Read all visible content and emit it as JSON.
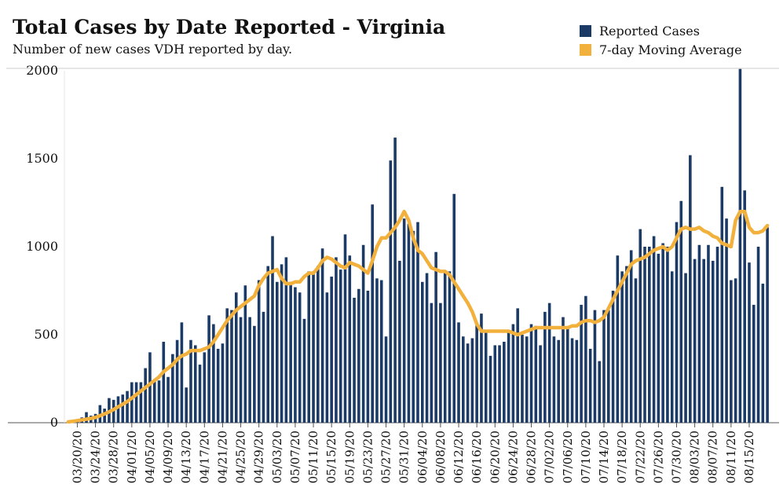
{
  "colors": {
    "bar": "#1b3a66",
    "line": "#f2b13c",
    "axis": "#555555",
    "rule": "#cccccc"
  },
  "chart_data": {
    "type": "bar",
    "title": "Total Cases by Date Reported - Virginia",
    "subtitle": "Number of new cases VDH reported by day.",
    "xlabel": "",
    "ylabel": "",
    "ylim": [
      0,
      2000
    ],
    "yticks": [
      0,
      500,
      1000,
      1500,
      2000
    ],
    "start_date": "03/18/20",
    "xtick_labels": [
      "03/20/20",
      "03/24/20",
      "03/28/20",
      "04/01/20",
      "04/05/20",
      "04/09/20",
      "04/13/20",
      "04/17/20",
      "04/21/20",
      "04/25/20",
      "04/29/20",
      "05/03/20",
      "05/07/20",
      "05/11/20",
      "05/15/20",
      "05/19/20",
      "05/23/20",
      "05/27/20",
      "05/31/20",
      "06/04/20",
      "06/08/20",
      "06/12/20",
      "06/16/20",
      "06/20/20",
      "06/24/20",
      "06/28/20",
      "07/02/20",
      "07/06/20",
      "07/10/20",
      "07/14/20",
      "07/18/20",
      "07/22/20",
      "07/26/20",
      "07/30/20",
      "08/03/20",
      "08/07/20",
      "08/11/20",
      "08/15/20"
    ],
    "grid": false,
    "legend_position": "top-right",
    "series": [
      {
        "name": "Reported Cases",
        "type": "bar",
        "values": [
          10,
          10,
          20,
          30,
          60,
          40,
          50,
          100,
          80,
          140,
          130,
          150,
          160,
          180,
          230,
          230,
          230,
          310,
          400,
          240,
          240,
          460,
          260,
          390,
          470,
          570,
          200,
          470,
          440,
          330,
          400,
          610,
          560,
          420,
          450,
          650,
          640,
          740,
          600,
          780,
          600,
          550,
          810,
          630,
          890,
          1060,
          800,
          900,
          940,
          800,
          770,
          740,
          590,
          860,
          860,
          890,
          990,
          740,
          830,
          940,
          870,
          1070,
          950,
          710,
          760,
          1010,
          750,
          1240,
          820,
          810,
          490,
          1490,
          1620,
          920,
          1160,
          1130,
          1090,
          1140,
          800,
          850,
          680,
          970,
          680,
          850,
          860,
          1300,
          570,
          490,
          450,
          480,
          570,
          620,
          520,
          380,
          440,
          440,
          460,
          520,
          560,
          650,
          500,
          490,
          560,
          550,
          440,
          630,
          680,
          490,
          470,
          600,
          540,
          480,
          470,
          670,
          720,
          420,
          640,
          350,
          640,
          640,
          750,
          950,
          860,
          890,
          980,
          820,
          1100,
          1000,
          1000,
          1060,
          960,
          1020,
          1000,
          860,
          1140,
          1260,
          850,
          1520,
          930,
          1010,
          930,
          1010,
          920,
          1000,
          1340,
          1160,
          810,
          820,
          2010,
          1320,
          910,
          670,
          1000,
          790,
          1110
        ]
      },
      {
        "name": "7-day Moving Average",
        "type": "line",
        "values": [
          5,
          8,
          12,
          16,
          20,
          25,
          30,
          40,
          50,
          62,
          75,
          90,
          105,
          120,
          140,
          160,
          180,
          200,
          220,
          240,
          260,
          290,
          310,
          330,
          360,
          380,
          390,
          410,
          410,
          410,
          420,
          430,
          460,
          500,
          540,
          580,
          610,
          640,
          660,
          680,
          700,
          720,
          780,
          820,
          850,
          860,
          870,
          820,
          790,
          790,
          800,
          800,
          830,
          850,
          850,
          880,
          920,
          940,
          930,
          910,
          890,
          880,
          910,
          900,
          890,
          870,
          850,
          920,
          1000,
          1050,
          1050,
          1080,
          1110,
          1150,
          1200,
          1150,
          1050,
          980,
          960,
          920,
          880,
          870,
          860,
          860,
          840,
          800,
          760,
          720,
          680,
          630,
          560,
          520,
          520,
          520,
          520,
          520,
          520,
          520,
          510,
          500,
          510,
          520,
          530,
          540,
          540,
          540,
          540,
          540,
          540,
          540,
          540,
          550,
          550,
          570,
          580,
          580,
          570,
          580,
          600,
          650,
          700,
          750,
          800,
          850,
          900,
          920,
          930,
          940,
          960,
          980,
          990,
          1000,
          980,
          1000,
          1050,
          1100,
          1110,
          1100,
          1100,
          1110,
          1090,
          1080,
          1060,
          1050,
          1020,
          1010,
          1000,
          1150,
          1200,
          1200,
          1110,
          1080,
          1080,
          1090,
          1120
        ]
      }
    ]
  }
}
